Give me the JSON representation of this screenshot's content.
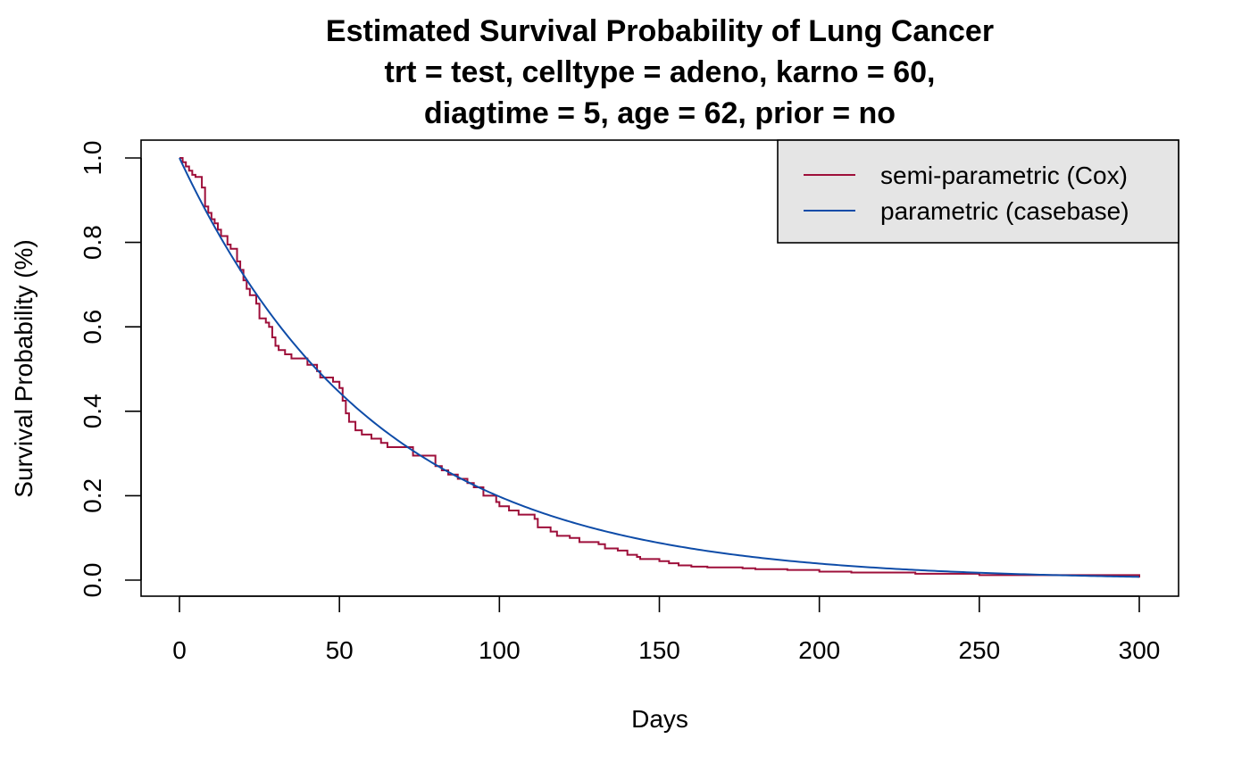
{
  "chart_data": {
    "type": "line",
    "title_lines": [
      "Estimated Survival Probability of Lung Cancer",
      "trt = test, celltype = adeno, karno = 60,",
      "diagtime = 5, age = 62, prior = no"
    ],
    "xlabel": "Days",
    "ylabel": "Survival Probability (%)",
    "xlim": [
      0,
      300
    ],
    "ylim": [
      0,
      1
    ],
    "x_ticks": [
      0,
      50,
      100,
      150,
      200,
      250,
      300
    ],
    "x_tick_labels": [
      "0",
      "50",
      "100",
      "150",
      "200",
      "250",
      "300"
    ],
    "y_ticks": [
      0,
      0.2,
      0.4,
      0.6,
      0.8,
      1.0
    ],
    "y_tick_labels": [
      "0.0",
      "0.2",
      "0.4",
      "0.6",
      "0.8",
      "1.0"
    ],
    "grid": false,
    "legend_position": "top-right",
    "series": [
      {
        "name": "semi-parametric (Cox)",
        "color": "#9E0F3A",
        "style": "step",
        "x": [
          0,
          1,
          2,
          3,
          4,
          5,
          7,
          8,
          9,
          10,
          11,
          12,
          13,
          15,
          16,
          18,
          19,
          20,
          21,
          22,
          23,
          24,
          25,
          27,
          28,
          29,
          30,
          31,
          33,
          35,
          38,
          40,
          43,
          44,
          45,
          48,
          50,
          51,
          52,
          53,
          55,
          57,
          60,
          63,
          65,
          70,
          73,
          80,
          82,
          84,
          87,
          90,
          92,
          95,
          99,
          100,
          103,
          106,
          108,
          111,
          112,
          116,
          118,
          122,
          125,
          131,
          133,
          137,
          140,
          143,
          144,
          150,
          153,
          156,
          160,
          165,
          176,
          180,
          190,
          200,
          210,
          230,
          250,
          300
        ],
        "y": [
          1.0,
          0.99,
          0.98,
          0.97,
          0.96,
          0.955,
          0.93,
          0.885,
          0.87,
          0.855,
          0.845,
          0.83,
          0.815,
          0.795,
          0.785,
          0.755,
          0.735,
          0.71,
          0.69,
          0.675,
          0.675,
          0.655,
          0.62,
          0.61,
          0.6,
          0.575,
          0.555,
          0.545,
          0.535,
          0.525,
          0.525,
          0.51,
          0.495,
          0.48,
          0.48,
          0.47,
          0.455,
          0.425,
          0.395,
          0.375,
          0.355,
          0.345,
          0.335,
          0.325,
          0.315,
          0.315,
          0.295,
          0.27,
          0.26,
          0.25,
          0.24,
          0.23,
          0.22,
          0.2,
          0.185,
          0.175,
          0.165,
          0.155,
          0.155,
          0.145,
          0.125,
          0.115,
          0.105,
          0.1,
          0.09,
          0.085,
          0.075,
          0.07,
          0.06,
          0.055,
          0.05,
          0.045,
          0.04,
          0.035,
          0.032,
          0.03,
          0.028,
          0.026,
          0.024,
          0.02,
          0.018,
          0.015,
          0.012,
          0.006
        ]
      },
      {
        "name": "parametric (casebase)",
        "color": "#0E4CA8",
        "style": "smooth",
        "function": "exp(-0.0162*x)"
      }
    ]
  }
}
